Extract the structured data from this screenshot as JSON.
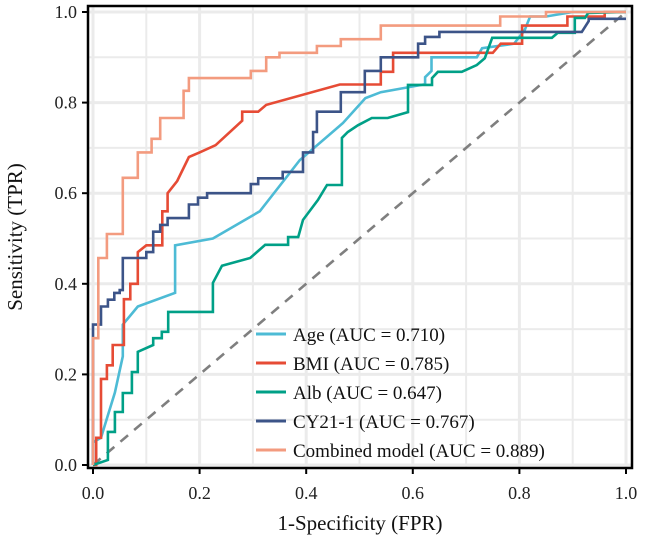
{
  "chart_data": {
    "type": "line",
    "title": "",
    "xlabel": "1-Specificity (FPR)",
    "ylabel": "Sensitivity (TPR)",
    "xlim": [
      0,
      1
    ],
    "ylim": [
      0,
      1
    ],
    "xticks": [
      "0.0",
      "0.2",
      "0.4",
      "0.6",
      "0.8",
      "1.0"
    ],
    "yticks": [
      "0.0",
      "0.2",
      "0.4",
      "0.6",
      "0.8",
      "1.0"
    ],
    "grid": true,
    "legend_position": "bottom-right",
    "reference_line": {
      "name": "chance",
      "x": [
        0,
        1
      ],
      "y": [
        0,
        1
      ],
      "color": "#7f7f7f",
      "style": "dashed"
    },
    "series": [
      {
        "name": "Age (AUC = 0.710)",
        "color": "#4DBBD5",
        "x": [
          0,
          0,
          0.015,
          0.028,
          0.041,
          0.056,
          0.056,
          0.084,
          0.154,
          0.154,
          0.225,
          0.313,
          0.388,
          0.469,
          0.511,
          0.54,
          0.62,
          0.623,
          0.623,
          0.635,
          0.635,
          0.72,
          0.73,
          0.79,
          0.81,
          0.82,
          0.85,
          0.9,
          1
        ],
        "y": [
          0,
          0.05,
          0.06,
          0.11,
          0.16,
          0.24,
          0.31,
          0.35,
          0.38,
          0.485,
          0.5,
          0.56,
          0.673,
          0.755,
          0.81,
          0.823,
          0.84,
          0.84,
          0.856,
          0.87,
          0.9,
          0.9,
          0.92,
          0.93,
          0.96,
          0.99,
          0.99,
          1,
          1
        ]
      },
      {
        "name": "BMI (AUC = 0.785)",
        "color": "#E64B35",
        "x": [
          0,
          0.006,
          0.006,
          0.015,
          0.015,
          0.026,
          0.026,
          0.037,
          0.037,
          0.058,
          0.058,
          0.07,
          0.07,
          0.084,
          0.084,
          0.1,
          0.13,
          0.13,
          0.14,
          0.14,
          0.158,
          0.18,
          0.2,
          0.2,
          0.23,
          0.23,
          0.28,
          0.28,
          0.31,
          0.325,
          0.325,
          0.463,
          0.463,
          0.54,
          0.54,
          0.563,
          0.563,
          0.75,
          0.765,
          0.79,
          0.805,
          0.805,
          0.89,
          0.89,
          0.96,
          0.96,
          1
        ],
        "y": [
          0,
          0,
          0.06,
          0.06,
          0.19,
          0.19,
          0.22,
          0.22,
          0.265,
          0.265,
          0.366,
          0.366,
          0.4,
          0.4,
          0.47,
          0.485,
          0.485,
          0.56,
          0.56,
          0.6,
          0.627,
          0.68,
          0.69,
          0.69,
          0.706,
          0.706,
          0.76,
          0.78,
          0.78,
          0.795,
          0.795,
          0.84,
          0.84,
          0.84,
          0.868,
          0.868,
          0.91,
          0.91,
          0.93,
          0.93,
          0.93,
          0.97,
          0.97,
          0.99,
          0.99,
          1,
          1
        ]
      },
      {
        "name": "Alb (AUC = 0.647)",
        "color": "#00A087",
        "x": [
          0,
          0.028,
          0.028,
          0.041,
          0.041,
          0.056,
          0.056,
          0.073,
          0.073,
          0.084,
          0.084,
          0.113,
          0.113,
          0.129,
          0.129,
          0.141,
          0.141,
          0.225,
          0.225,
          0.242,
          0.295,
          0.323,
          0.366,
          0.366,
          0.385,
          0.394,
          0.422,
          0.439,
          0.467,
          0.467,
          0.478,
          0.497,
          0.523,
          0.553,
          0.591,
          0.591,
          0.636,
          0.636,
          0.647,
          0.692,
          0.72,
          0.735,
          0.749,
          0.861,
          0.872,
          0.904,
          0.904,
          0.923,
          0.929,
          1
        ],
        "y": [
          0,
          0.011,
          0.073,
          0.073,
          0.117,
          0.117,
          0.159,
          0.159,
          0.205,
          0.205,
          0.25,
          0.265,
          0.28,
          0.28,
          0.294,
          0.294,
          0.338,
          0.338,
          0.402,
          0.44,
          0.457,
          0.486,
          0.486,
          0.503,
          0.503,
          0.541,
          0.585,
          0.618,
          0.618,
          0.722,
          0.735,
          0.75,
          0.766,
          0.766,
          0.779,
          0.839,
          0.839,
          0.854,
          0.868,
          0.868,
          0.883,
          0.898,
          0.943,
          0.943,
          0.954,
          0.954,
          0.987,
          0.987,
          0.998,
          1
        ]
      },
      {
        "name": "CY21-1 (AUC = 0.767)",
        "color": "#3C5488",
        "x": [
          0,
          0,
          0.015,
          0.015,
          0.028,
          0.028,
          0.04,
          0.04,
          0.05,
          0.05,
          0.056,
          0.056,
          0.1,
          0.1,
          0.113,
          0.113,
          0.126,
          0.126,
          0.14,
          0.14,
          0.18,
          0.18,
          0.197,
          0.197,
          0.214,
          0.214,
          0.296,
          0.296,
          0.31,
          0.31,
          0.356,
          0.356,
          0.394,
          0.394,
          0.413,
          0.413,
          0.42,
          0.42,
          0.465,
          0.465,
          0.51,
          0.51,
          0.54,
          0.54,
          0.61,
          0.61,
          0.623,
          0.623,
          0.65,
          0.65,
          0.917,
          0.93,
          0.93,
          1
        ],
        "y": [
          0,
          0.31,
          0.31,
          0.35,
          0.35,
          0.365,
          0.365,
          0.38,
          0.38,
          0.386,
          0.386,
          0.457,
          0.457,
          0.47,
          0.47,
          0.515,
          0.515,
          0.53,
          0.53,
          0.545,
          0.545,
          0.575,
          0.575,
          0.59,
          0.59,
          0.6,
          0.6,
          0.62,
          0.62,
          0.633,
          0.633,
          0.647,
          0.647,
          0.69,
          0.69,
          0.735,
          0.735,
          0.78,
          0.78,
          0.823,
          0.823,
          0.87,
          0.87,
          0.9,
          0.9,
          0.93,
          0.93,
          0.945,
          0.945,
          0.956,
          0.956,
          0.98,
          0.985,
          0.985
        ]
      },
      {
        "name": "Combined model (AUC = 0.889)",
        "color": "#F39B7F",
        "x": [
          0,
          0,
          0.01,
          0.01,
          0.026,
          0.026,
          0.056,
          0.056,
          0.084,
          0.084,
          0.11,
          0.11,
          0.126,
          0.126,
          0.17,
          0.17,
          0.18,
          0.18,
          0.296,
          0.296,
          0.325,
          0.325,
          0.35,
          0.35,
          0.42,
          0.42,
          0.465,
          0.465,
          0.54,
          0.54,
          0.764,
          0.764,
          0.85,
          0.85,
          1
        ],
        "y": [
          0,
          0.28,
          0.28,
          0.457,
          0.457,
          0.51,
          0.51,
          0.634,
          0.634,
          0.69,
          0.69,
          0.72,
          0.72,
          0.766,
          0.766,
          0.826,
          0.826,
          0.854,
          0.854,
          0.87,
          0.87,
          0.9,
          0.9,
          0.91,
          0.91,
          0.925,
          0.925,
          0.94,
          0.94,
          0.97,
          0.97,
          0.99,
          0.99,
          1,
          1
        ]
      }
    ]
  }
}
